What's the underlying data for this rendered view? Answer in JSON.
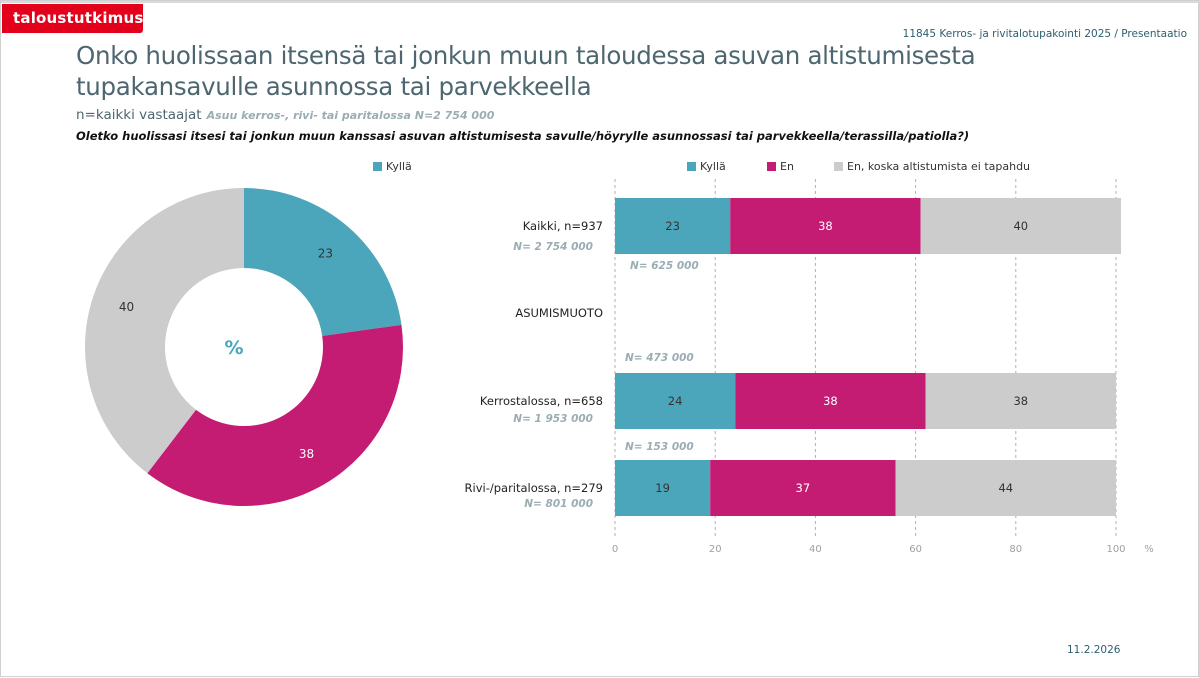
{
  "header": {
    "brand": "taloustutkimus",
    "project": "11845 Kerros- ja rivitalotupakointi 2025 / Presentaatio",
    "title": "Onko huolissaan itsensä tai jonkun muun taloudessa asuvan altistumisesta tupakansavulle asunnossa tai parvekkeella",
    "base": "n=kaikki vastaajat",
    "base_sub": "Asuu kerros-, rivi- tai paritalossa N=2 754 000",
    "question": "Oletko huolissasi itsesi tai jonkun muun kanssasi asuvan altistumisesta savulle/höyrylle asunnossasi tai parvekkeella/terassilla/patiolla?)"
  },
  "footer": {
    "date": "11.2.2026"
  },
  "colors": {
    "kylla": "#4ba6bc",
    "en": "#c41c73",
    "ei_tapahdu": "#cccccc",
    "brand": "#e2001a"
  },
  "chart_data": [
    {
      "type": "pie",
      "variant": "donut",
      "center_label": "%",
      "legend": [
        "Kyllä"
      ],
      "legend_position": "top-right",
      "slices": [
        {
          "label": "Kyllä",
          "value": 23
        },
        {
          "label": "En",
          "value": 38
        },
        {
          "label": "En, koska altistumista ei tapahdu",
          "value": 40
        }
      ]
    },
    {
      "type": "bar",
      "orientation": "horizontal",
      "stacked": true,
      "legend": [
        "Kyllä",
        "En",
        "En, koska altistumista ei tapahdu"
      ],
      "legend_position": "top",
      "xlim": [
        0,
        100
      ],
      "xticks": [
        "0",
        "20",
        "40",
        "60",
        "80",
        "100"
      ],
      "xunit": "%",
      "grid": true,
      "section_label": "ASUMISMUOTO",
      "categories": [
        {
          "label": "Kaikki, n=937",
          "population": "N= 2 754 000",
          "kylla_population": "N= 625 000"
        },
        {
          "label": "Kerrostalossa, n=658",
          "population": "N= 1 953 000",
          "kylla_population": "N= 473 000"
        },
        {
          "label": "Rivi-/paritalossa, n=279",
          "population": "N= 801 000",
          "kylla_population": "N= 153 000"
        }
      ],
      "series": [
        {
          "name": "Kyllä",
          "values": [
            23,
            24,
            19
          ]
        },
        {
          "name": "En",
          "values": [
            38,
            38,
            37
          ]
        },
        {
          "name": "En, koska altistumista ei tapahdu",
          "values": [
            40,
            38,
            44
          ]
        }
      ]
    }
  ]
}
